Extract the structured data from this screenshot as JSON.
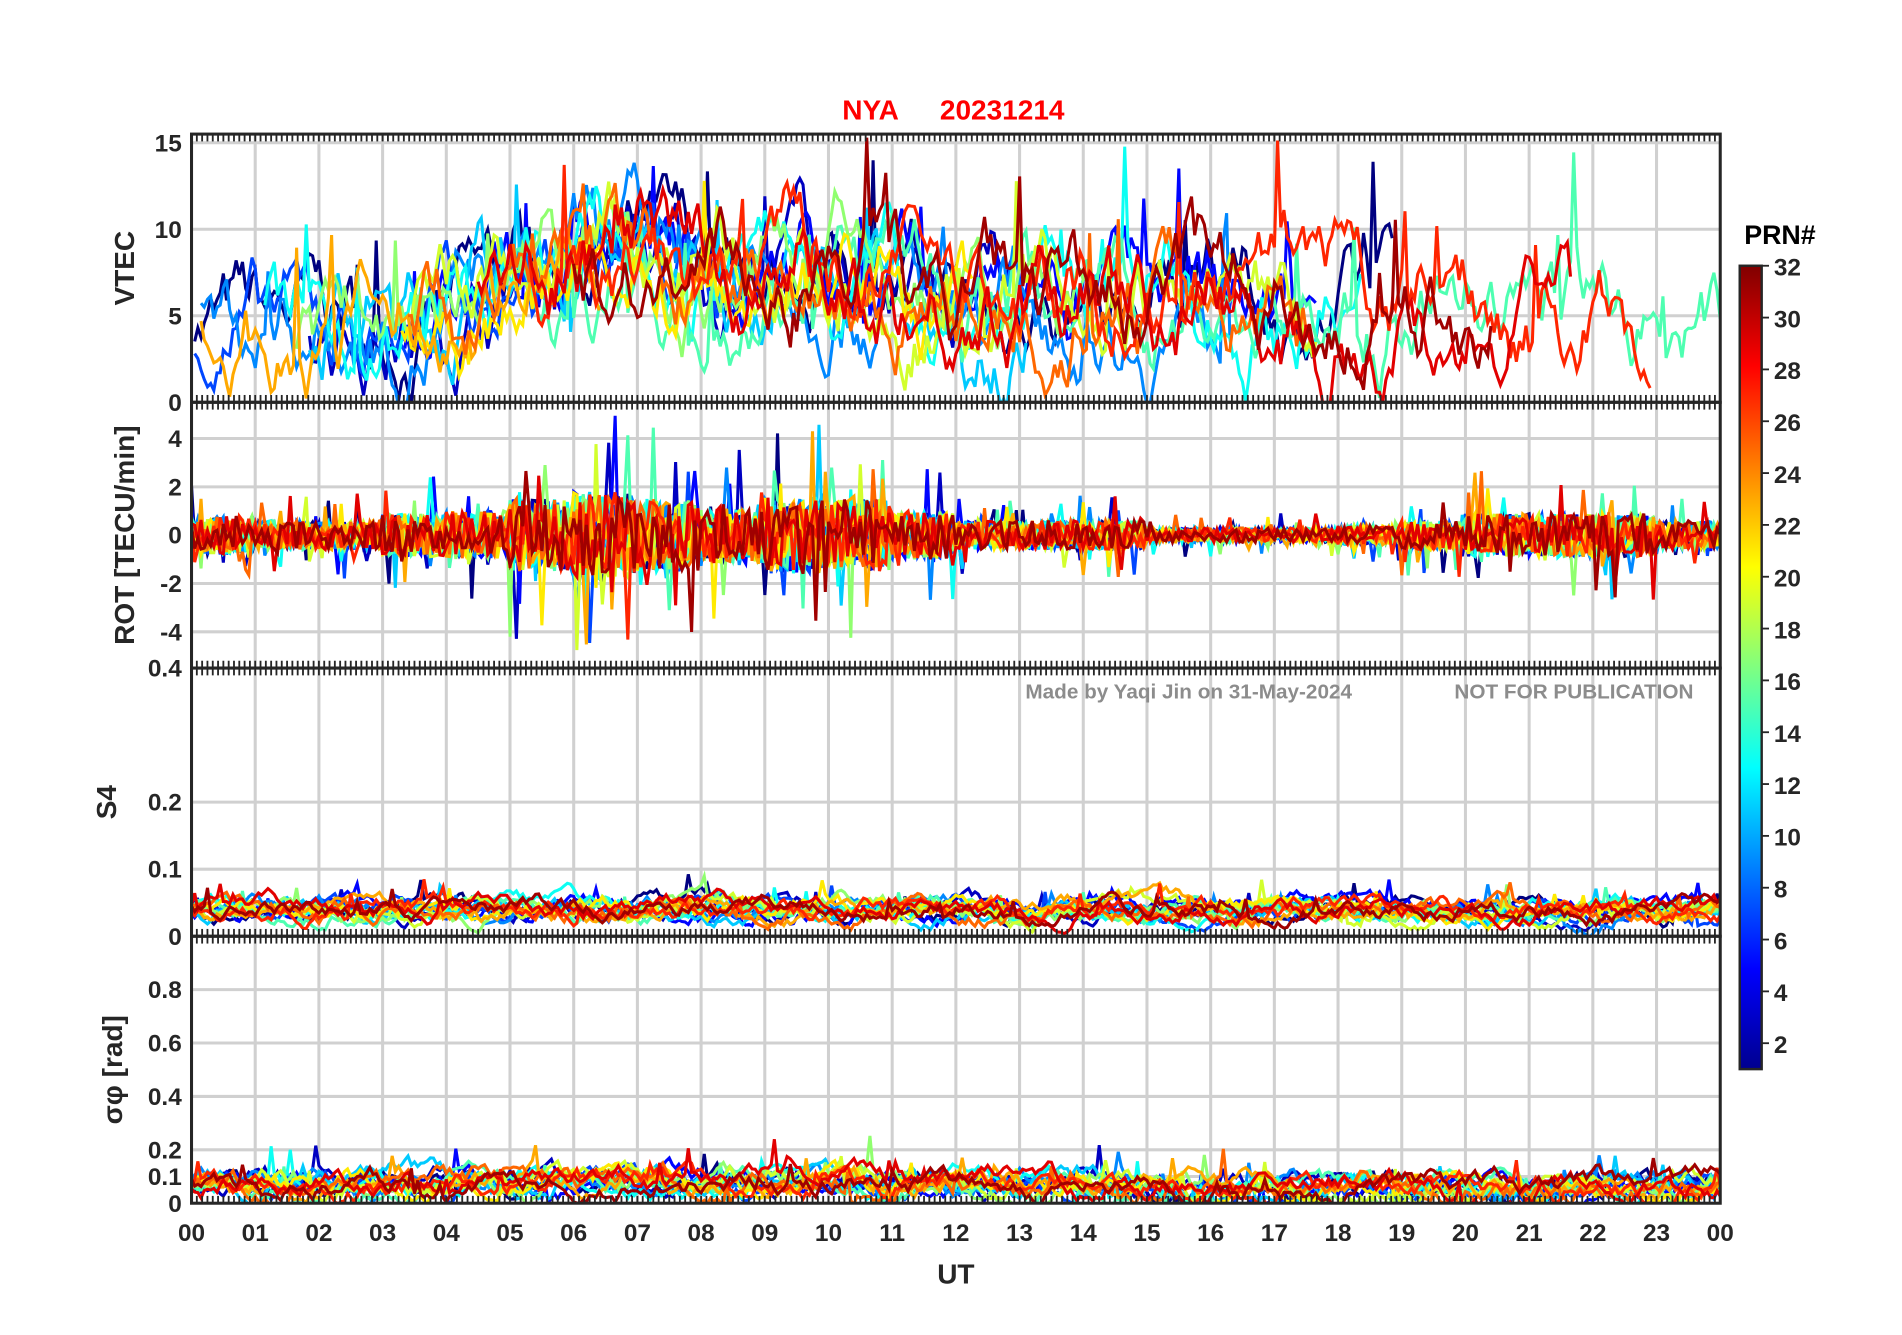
{
  "chart_data": {
    "type": "line",
    "title": {
      "station": "NYA",
      "date": "20231214"
    },
    "title_color": "#ff0000",
    "xlabel": "UT",
    "x_ticks": [
      "00",
      "01",
      "02",
      "03",
      "04",
      "05",
      "06",
      "07",
      "08",
      "09",
      "10",
      "11",
      "12",
      "13",
      "14",
      "15",
      "16",
      "17",
      "18",
      "19",
      "20",
      "21",
      "22",
      "23",
      "00"
    ],
    "xlim_hours": [
      0,
      24
    ],
    "grid": true,
    "colorbar": {
      "label": "PRN#",
      "colormap": "jet",
      "range": [
        1,
        32
      ],
      "ticks": [
        "2",
        "4",
        "6",
        "8",
        "10",
        "12",
        "14",
        "16",
        "18",
        "20",
        "22",
        "24",
        "26",
        "28",
        "30",
        "32"
      ]
    },
    "watermark": {
      "author": "Made by Yaqi Jin on 31-May-2024",
      "notice": "NOT FOR PUBLICATION"
    },
    "panels": [
      {
        "ylabel": "VTEC",
        "ylim": [
          0,
          15.5
        ],
        "yticks": [
          {
            "v": 0,
            "t": "0"
          },
          {
            "v": 5,
            "t": "5"
          },
          {
            "v": 10,
            "t": "10"
          },
          {
            "v": 15,
            "t": "15"
          }
        ],
        "hourly_typical": [
          4.2,
          4.0,
          4.5,
          4.5,
          5.0,
          6.5,
          8.0,
          8.5,
          7.0,
          8.0,
          8.5,
          7.0,
          5.5,
          6.0,
          6.0,
          5.5,
          5.5,
          5.5,
          5.0,
          5.0,
          5.5,
          5.0,
          5.0,
          4.0,
          3.0
        ],
        "noise": 1.6
      },
      {
        "ylabel": "ROT [TECU/min]",
        "ylim": [
          -5.5,
          5.5
        ],
        "yticks": [
          {
            "v": -4,
            "t": "-4"
          },
          {
            "v": -2,
            "t": "-2"
          },
          {
            "v": 0,
            "t": "0"
          },
          {
            "v": 2,
            "t": "2"
          },
          {
            "v": 4,
            "t": "4"
          }
        ],
        "hourly_typical": [
          0,
          0,
          0,
          0,
          0,
          0,
          0,
          0,
          0,
          0,
          0,
          0,
          0,
          0,
          0,
          0,
          0,
          0,
          0,
          0,
          0,
          0,
          0,
          0,
          0
        ],
        "hourly_amplitude": [
          0.8,
          0.6,
          0.6,
          0.9,
          1.0,
          1.5,
          1.8,
          1.5,
          1.2,
          1.6,
          1.5,
          1.0,
          0.6,
          0.6,
          0.6,
          0.3,
          0.3,
          0.3,
          0.4,
          0.6,
          0.9,
          0.9,
          0.9,
          0.6,
          0.5
        ]
      },
      {
        "ylabel": "S4",
        "ylim": [
          0,
          0.4
        ],
        "yticks": [
          {
            "v": 0,
            "t": "0"
          },
          {
            "v": 0.1,
            "t": "0.1"
          },
          {
            "v": 0.2,
            "t": "0.2"
          },
          {
            "v": 0.4,
            "t": "0.4"
          }
        ],
        "hourly_typical": [
          0.04,
          0.045,
          0.04,
          0.04,
          0.04,
          0.04,
          0.04,
          0.04,
          0.045,
          0.04,
          0.04,
          0.04,
          0.04,
          0.035,
          0.04,
          0.04,
          0.04,
          0.04,
          0.04,
          0.04,
          0.04,
          0.04,
          0.035,
          0.04,
          0.04
        ],
        "noise": 0.008
      },
      {
        "ylabel": "σφ [rad]",
        "ylim": [
          0,
          1.0
        ],
        "yticks": [
          {
            "v": 0,
            "t": "0"
          },
          {
            "v": 0.1,
            "t": "0.1"
          },
          {
            "v": 0.2,
            "t": "0.2"
          },
          {
            "v": 0.4,
            "t": "0.4"
          },
          {
            "v": 0.6,
            "t": "0.6"
          },
          {
            "v": 0.8,
            "t": "0.8"
          }
        ],
        "hourly_typical": [
          0.07,
          0.07,
          0.07,
          0.08,
          0.08,
          0.08,
          0.08,
          0.07,
          0.07,
          0.08,
          0.08,
          0.07,
          0.07,
          0.06,
          0.06,
          0.06,
          0.05,
          0.05,
          0.06,
          0.06,
          0.06,
          0.06,
          0.06,
          0.06,
          0.07
        ],
        "noise": 0.025
      }
    ],
    "prns": [
      1,
      3,
      5,
      7,
      9,
      11,
      13,
      15,
      17,
      19,
      21,
      23,
      25,
      27,
      29,
      31
    ]
  }
}
